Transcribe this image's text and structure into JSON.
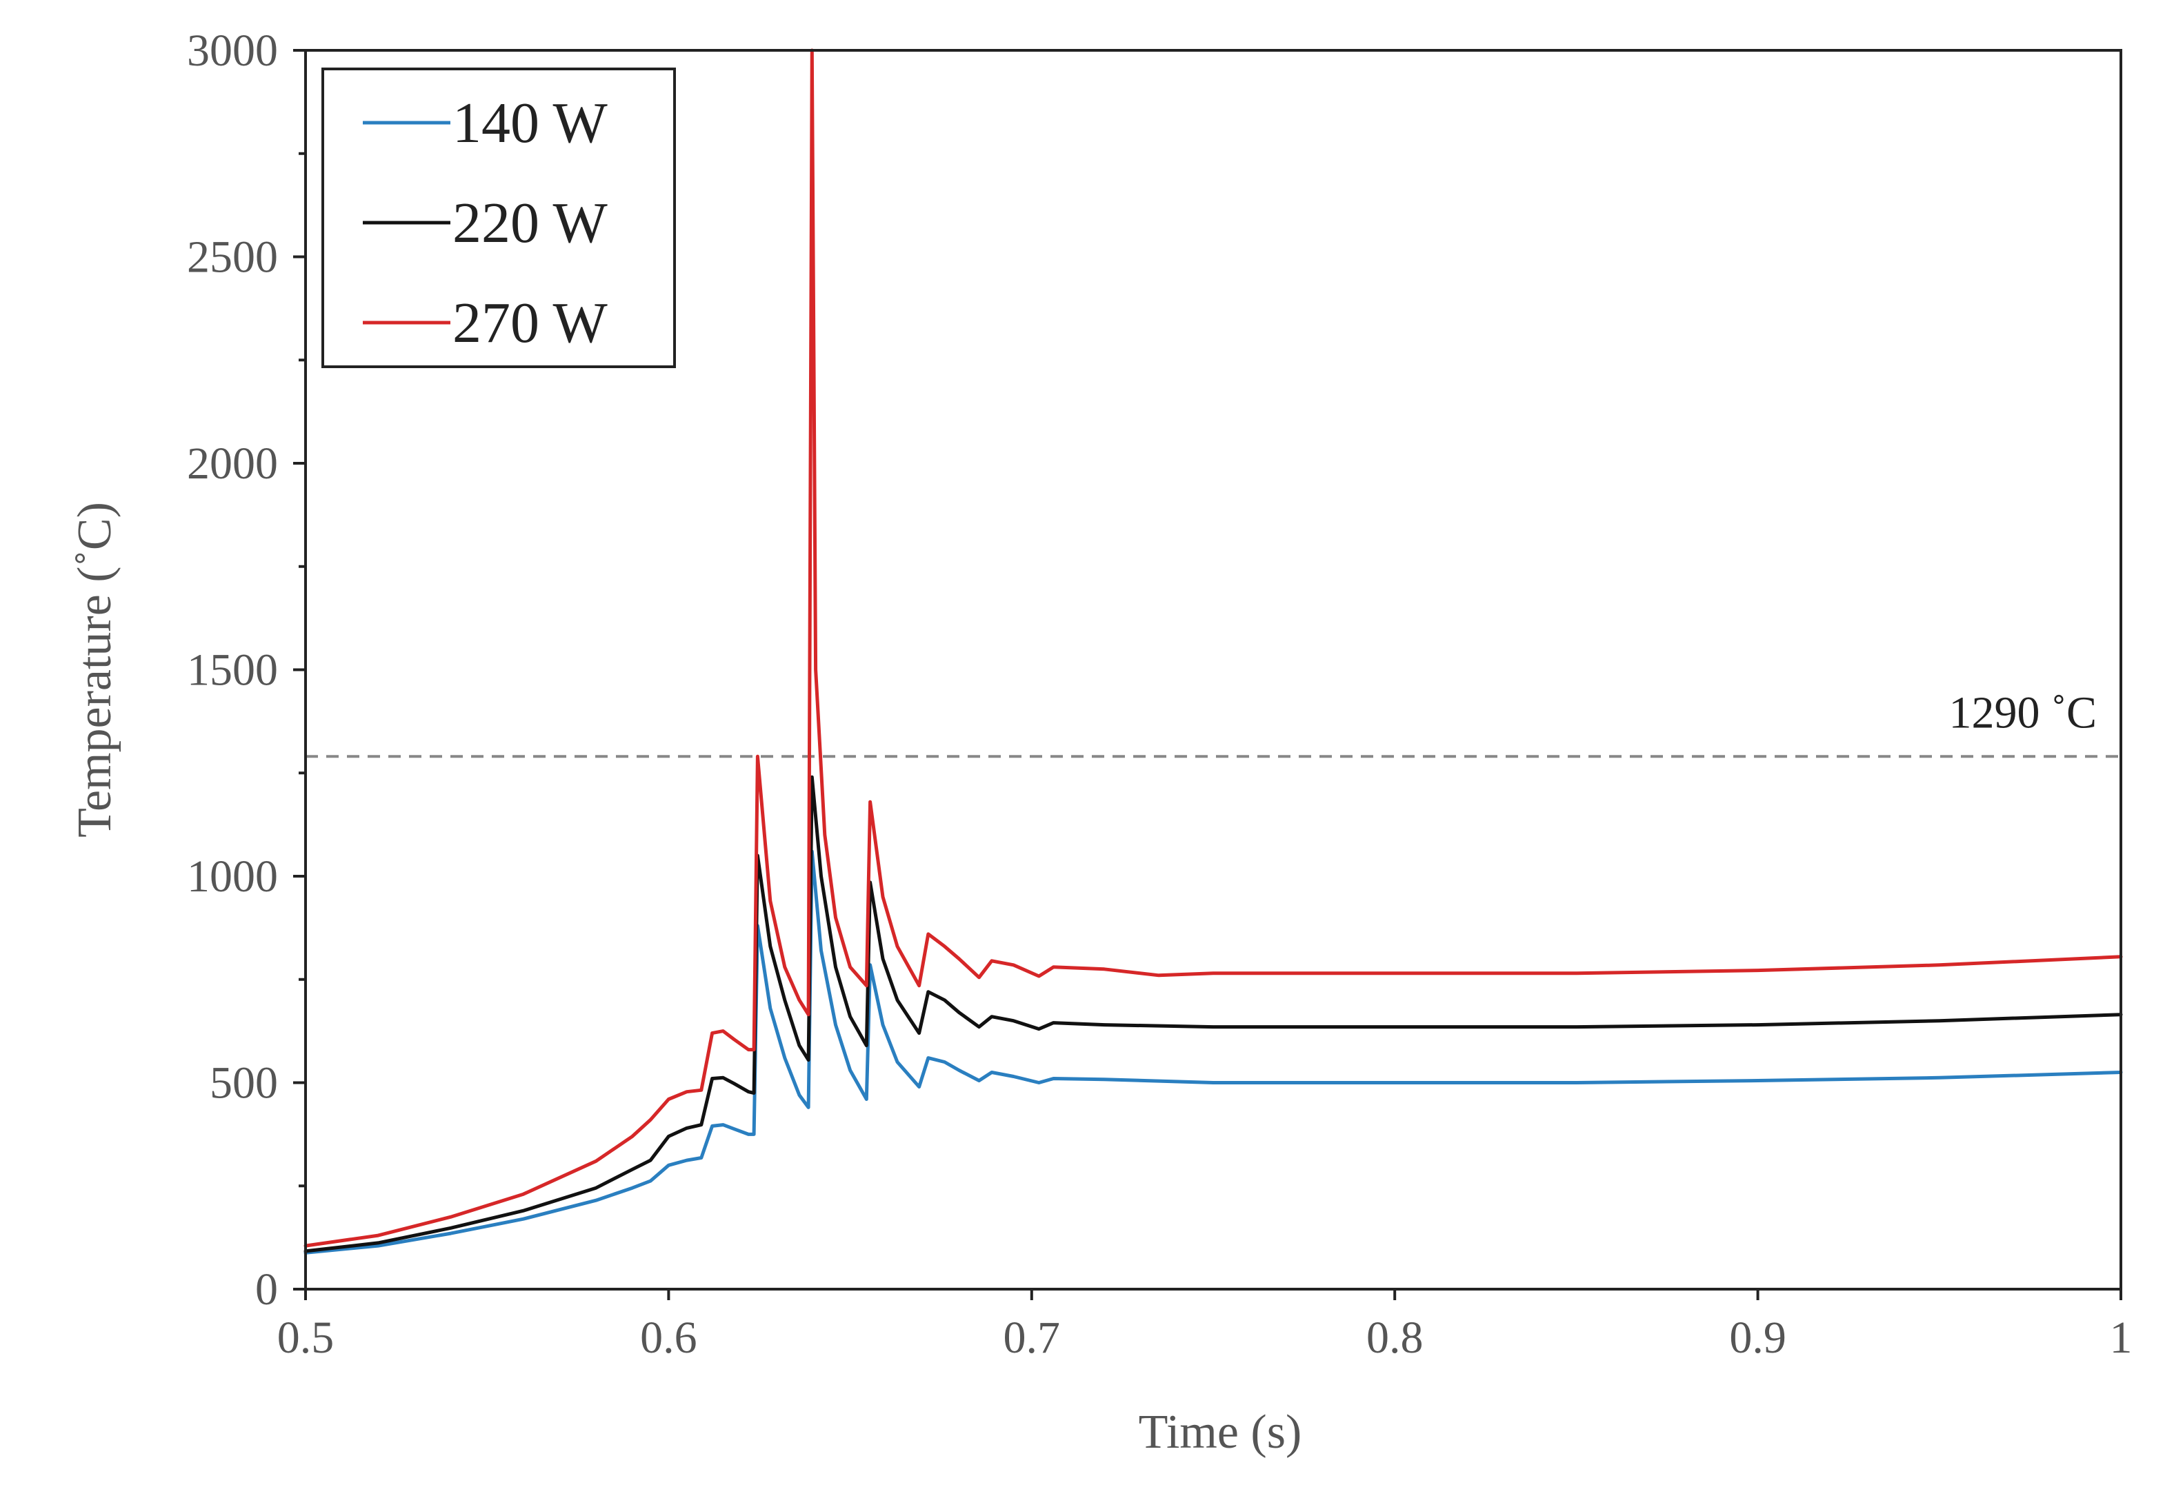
{
  "chart_data": {
    "type": "line",
    "title": "",
    "xlabel": "Time (s)",
    "ylabel": "Temperature (˚C)",
    "xlim": [
      0.5,
      1.0
    ],
    "ylim": [
      0,
      3000
    ],
    "x_ticks": [
      0.5,
      0.6,
      0.7,
      0.8,
      0.9,
      1.0
    ],
    "x_tick_labels": [
      "0.5",
      "0.6",
      "0.7",
      "0.8",
      "0.9",
      "1"
    ],
    "y_ticks": [
      0,
      500,
      1000,
      1500,
      2000,
      2500,
      3000
    ],
    "y_tick_labels": [
      "0",
      "500",
      "1000",
      "1500",
      "2000",
      "2500",
      "3000"
    ],
    "grid": false,
    "legend_position": "top-left",
    "reference_line": {
      "y": 1290,
      "label": "1290 ˚C",
      "color": "#888888",
      "style": "dashed"
    },
    "series": [
      {
        "name": "140 W",
        "color": "#2a7fc0",
        "points": [
          [
            0.5,
            88
          ],
          [
            0.52,
            105
          ],
          [
            0.54,
            135
          ],
          [
            0.56,
            170
          ],
          [
            0.58,
            215
          ],
          [
            0.59,
            245
          ],
          [
            0.595,
            262
          ],
          [
            0.6,
            300
          ],
          [
            0.605,
            312
          ],
          [
            0.609,
            318
          ],
          [
            0.612,
            395
          ],
          [
            0.615,
            398
          ],
          [
            0.618,
            388
          ],
          [
            0.622,
            375
          ],
          [
            0.6235,
            375
          ],
          [
            0.6245,
            880
          ],
          [
            0.628,
            680
          ],
          [
            0.632,
            560
          ],
          [
            0.636,
            470
          ],
          [
            0.6385,
            440
          ],
          [
            0.6395,
            1060
          ],
          [
            0.642,
            820
          ],
          [
            0.646,
            640
          ],
          [
            0.65,
            530
          ],
          [
            0.6545,
            460
          ],
          [
            0.6555,
            785
          ],
          [
            0.659,
            640
          ],
          [
            0.663,
            550
          ],
          [
            0.669,
            490
          ],
          [
            0.6715,
            560
          ],
          [
            0.676,
            550
          ],
          [
            0.68,
            530
          ],
          [
            0.6855,
            505
          ],
          [
            0.689,
            525
          ],
          [
            0.695,
            515
          ],
          [
            0.702,
            500
          ],
          [
            0.706,
            510
          ],
          [
            0.72,
            508
          ],
          [
            0.75,
            500
          ],
          [
            0.8,
            500
          ],
          [
            0.85,
            500
          ],
          [
            0.9,
            505
          ],
          [
            0.95,
            512
          ],
          [
            1.0,
            525
          ]
        ]
      },
      {
        "name": "220 W",
        "color": "#111111",
        "points": [
          [
            0.5,
            92
          ],
          [
            0.52,
            112
          ],
          [
            0.54,
            148
          ],
          [
            0.56,
            190
          ],
          [
            0.58,
            245
          ],
          [
            0.59,
            290
          ],
          [
            0.595,
            312
          ],
          [
            0.6,
            370
          ],
          [
            0.605,
            390
          ],
          [
            0.609,
            398
          ],
          [
            0.612,
            510
          ],
          [
            0.615,
            512
          ],
          [
            0.618,
            498
          ],
          [
            0.622,
            478
          ],
          [
            0.6235,
            475
          ],
          [
            0.6245,
            1050
          ],
          [
            0.628,
            830
          ],
          [
            0.632,
            700
          ],
          [
            0.636,
            590
          ],
          [
            0.6385,
            555
          ],
          [
            0.6395,
            1240
          ],
          [
            0.642,
            1000
          ],
          [
            0.646,
            780
          ],
          [
            0.65,
            660
          ],
          [
            0.6545,
            590
          ],
          [
            0.6555,
            985
          ],
          [
            0.659,
            800
          ],
          [
            0.663,
            700
          ],
          [
            0.669,
            620
          ],
          [
            0.6715,
            720
          ],
          [
            0.676,
            700
          ],
          [
            0.68,
            670
          ],
          [
            0.6855,
            635
          ],
          [
            0.689,
            660
          ],
          [
            0.695,
            650
          ],
          [
            0.702,
            630
          ],
          [
            0.706,
            645
          ],
          [
            0.72,
            640
          ],
          [
            0.75,
            635
          ],
          [
            0.8,
            635
          ],
          [
            0.85,
            635
          ],
          [
            0.9,
            640
          ],
          [
            0.95,
            650
          ],
          [
            1.0,
            665
          ]
        ]
      },
      {
        "name": "270 W",
        "color": "#d62728",
        "points": [
          [
            0.5,
            105
          ],
          [
            0.52,
            130
          ],
          [
            0.54,
            175
          ],
          [
            0.56,
            230
          ],
          [
            0.58,
            310
          ],
          [
            0.59,
            370
          ],
          [
            0.595,
            410
          ],
          [
            0.6,
            460
          ],
          [
            0.605,
            478
          ],
          [
            0.609,
            482
          ],
          [
            0.612,
            620
          ],
          [
            0.615,
            625
          ],
          [
            0.618,
            605
          ],
          [
            0.622,
            580
          ],
          [
            0.6235,
            580
          ],
          [
            0.6245,
            1290
          ],
          [
            0.628,
            940
          ],
          [
            0.632,
            780
          ],
          [
            0.636,
            700
          ],
          [
            0.6385,
            665
          ],
          [
            0.6395,
            3000
          ],
          [
            0.6405,
            1500
          ],
          [
            0.643,
            1100
          ],
          [
            0.646,
            900
          ],
          [
            0.65,
            780
          ],
          [
            0.6545,
            735
          ],
          [
            0.6555,
            1180
          ],
          [
            0.659,
            950
          ],
          [
            0.663,
            830
          ],
          [
            0.669,
            735
          ],
          [
            0.6715,
            860
          ],
          [
            0.676,
            830
          ],
          [
            0.68,
            800
          ],
          [
            0.6855,
            755
          ],
          [
            0.689,
            795
          ],
          [
            0.695,
            785
          ],
          [
            0.702,
            758
          ],
          [
            0.706,
            780
          ],
          [
            0.72,
            775
          ],
          [
            0.735,
            760
          ],
          [
            0.75,
            765
          ],
          [
            0.8,
            765
          ],
          [
            0.85,
            765
          ],
          [
            0.9,
            772
          ],
          [
            0.95,
            785
          ],
          [
            1.0,
            805
          ]
        ]
      }
    ]
  }
}
